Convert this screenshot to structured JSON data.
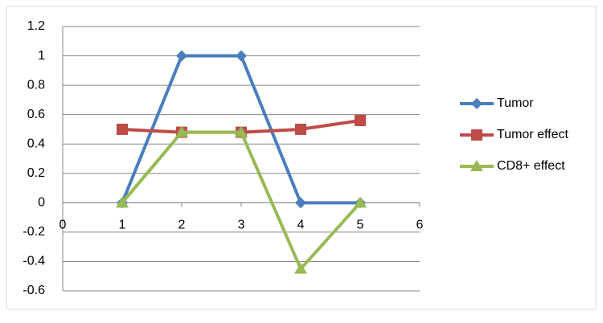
{
  "chart_data": {
    "type": "line",
    "x": [
      1,
      2,
      3,
      4,
      5
    ],
    "series": [
      {
        "name": "Tumor",
        "color": "#4a7ebb",
        "marker": "diamond",
        "values": [
          0,
          1,
          1,
          0,
          0
        ]
      },
      {
        "name": "Tumor effect",
        "color": "#be4b48",
        "marker": "square",
        "values": [
          0.5,
          0.48,
          0.48,
          0.5,
          0.56
        ]
      },
      {
        "name": "CD8+ effect",
        "color": "#98b954",
        "marker": "triangle",
        "values": [
          0,
          0.48,
          0.48,
          -0.45,
          0
        ]
      }
    ],
    "xlim": [
      0,
      6
    ],
    "xticks": [
      0,
      1,
      2,
      3,
      4,
      5,
      6
    ],
    "ylim": [
      -0.6,
      1.2
    ],
    "yticks": [
      1.2,
      1,
      0.8,
      0.6,
      0.4,
      0.2,
      0,
      -0.2,
      -0.4,
      -0.6
    ],
    "grid": true,
    "legend": "right"
  }
}
